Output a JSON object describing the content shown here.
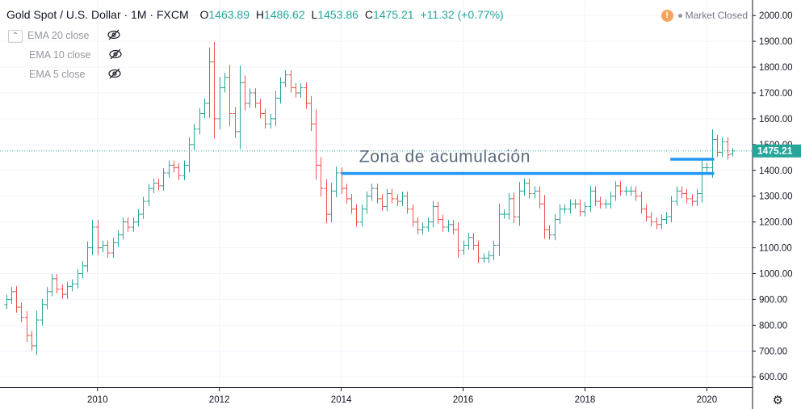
{
  "header": {
    "symbol": "Gold Spot / U.S. Dollar · 1M · FXCM",
    "open_label": "O",
    "open": "1463.89",
    "high_label": "H",
    "high": "1486.62",
    "low_label": "L",
    "low": "1453.86",
    "close_label": "C",
    "close": "1475.21",
    "change": "+11.32 (+0.77%)",
    "market_status": "Market Closed",
    "warning_glyph": "!"
  },
  "indicators": [
    {
      "label": "EMA 20 close",
      "icon": "eye-hidden-icon"
    },
    {
      "label": "EMA 10 close",
      "icon": "eye-hidden-icon"
    },
    {
      "label": "EMA 5 close",
      "icon": "eye-hidden-icon"
    }
  ],
  "colors": {
    "up": "#26a69a",
    "down": "#ef5350",
    "zone": "#2196f3",
    "price_tag": "#26a69a",
    "grid": "#f0f3fa"
  },
  "chart_data": {
    "type": "ohlc-bar",
    "title": "Gold Spot / U.S. Dollar",
    "interval": "1M",
    "source": "FXCM",
    "ylim": [
      560,
      2060
    ],
    "y_ticks": [
      600,
      700,
      800,
      900,
      1000,
      1100,
      1200,
      1300,
      1400,
      1500,
      1600,
      1700,
      1800,
      1900,
      2000
    ],
    "y_tick_labels": [
      "600.00",
      "700.00",
      "800.00",
      "900.00",
      "1000.00",
      "1100.00",
      "1200.00",
      "1300.00",
      "1400.00",
      "1500.00",
      "1600.00",
      "1700.00",
      "1800.00",
      "1900.00",
      "2000.00"
    ],
    "x_ticks": [
      2010,
      2012,
      2014,
      2016,
      2018,
      2020
    ],
    "x_tick_labels": [
      "2010",
      "2012",
      "2014",
      "2016",
      "2018",
      "2020"
    ],
    "xlim": [
      2008.4,
      2020.75
    ],
    "grid": true,
    "last_price": 1475.21,
    "last_price_label": "1475.21",
    "annotation": {
      "text": "Zona de acumulación",
      "x": 2015.7,
      "y": 1432
    },
    "zone_lines": [
      {
        "x0": 2014.0,
        "x1": 2020.12,
        "y": 1388
      },
      {
        "x0": 2019.4,
        "x1": 2020.12,
        "y": 1443
      }
    ],
    "monthly_close": [
      900,
      930,
      870,
      830,
      760,
      720,
      820,
      880,
      930,
      980,
      940,
      920,
      950,
      960,
      1000,
      1030,
      1100,
      1180,
      1100,
      1110,
      1080,
      1120,
      1150,
      1200,
      1180,
      1200,
      1230,
      1280,
      1330,
      1350,
      1340,
      1390,
      1420,
      1410,
      1380,
      1420,
      1500,
      1560,
      1620,
      1660,
      1820,
      1600,
      1720,
      1760,
      1620,
      1550,
      1740,
      1660,
      1700,
      1660,
      1620,
      1580,
      1600,
      1680,
      1740,
      1770,
      1720,
      1700,
      1720,
      1660,
      1580,
      1420,
      1330,
      1230,
      1320,
      1390,
      1330,
      1290,
      1250,
      1200,
      1250,
      1300,
      1330,
      1290,
      1260,
      1310,
      1290,
      1280,
      1300,
      1250,
      1200,
      1170,
      1180,
      1200,
      1260,
      1210,
      1180,
      1190,
      1170,
      1090,
      1110,
      1140,
      1110,
      1060,
      1060,
      1070,
      1110,
      1230,
      1230,
      1290,
      1220,
      1320,
      1350,
      1310,
      1320,
      1270,
      1170,
      1150,
      1210,
      1250,
      1250,
      1270,
      1270,
      1240,
      1260,
      1320,
      1280,
      1270,
      1270,
      1300,
      1340,
      1320,
      1320,
      1320,
      1300,
      1250,
      1220,
      1200,
      1190,
      1210,
      1220,
      1280,
      1320,
      1310,
      1290,
      1280,
      1310,
      1410,
      1410,
      1520,
      1470,
      1510,
      1460,
      1475
    ],
    "first_month": 2008.5
  }
}
